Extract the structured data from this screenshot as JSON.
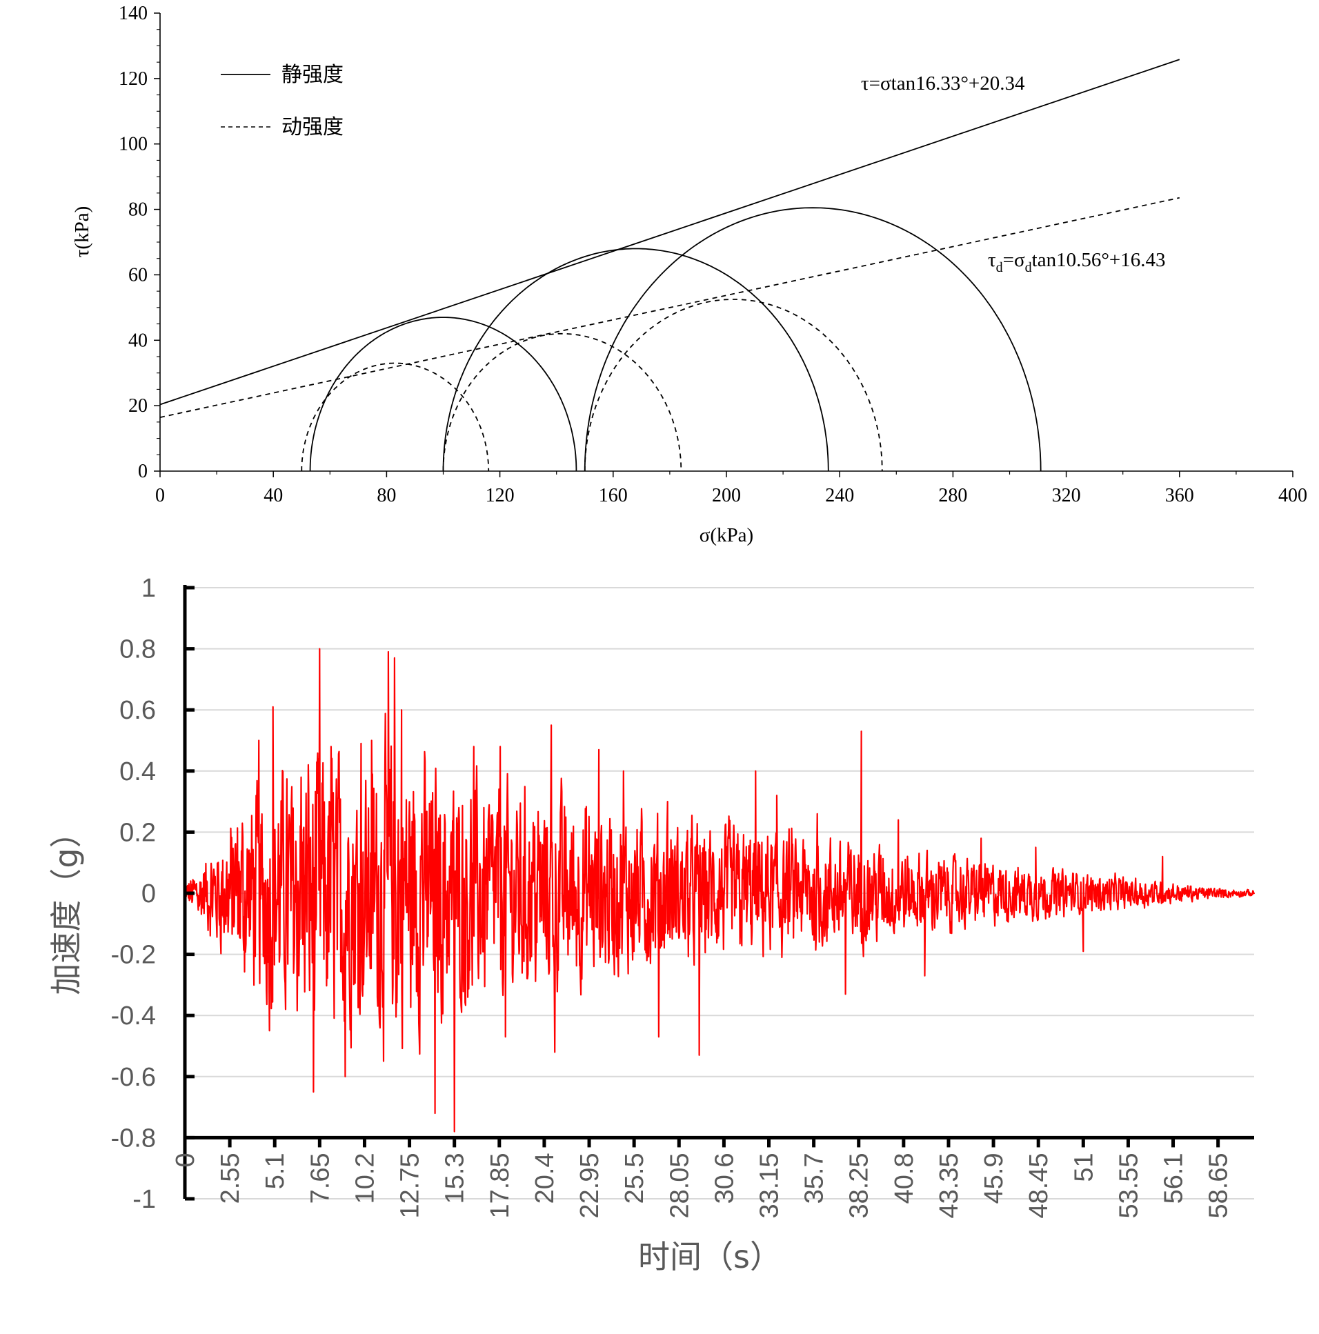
{
  "chart_data": [
    {
      "type": "line",
      "title": "",
      "xlabel": "σ(kPa)",
      "ylabel": "τ(kPa)",
      "xlim": [
        0,
        400
      ],
      "ylim": [
        0,
        140
      ],
      "x_ticks": [
        0,
        40,
        80,
        120,
        160,
        200,
        240,
        280,
        320,
        360,
        400
      ],
      "y_ticks": [
        0,
        20,
        40,
        60,
        80,
        100,
        120,
        140
      ],
      "legend": {
        "placement": "top-left",
        "entries": [
          {
            "label": "静强度",
            "style": "solid"
          },
          {
            "label": "动强度",
            "style": "dashed"
          }
        ]
      },
      "series": [
        {
          "name": "静强度",
          "style": "solid",
          "line": {
            "intercept": 20.34,
            "angle_deg": 16.33,
            "x_range": [
              0,
              360
            ]
          },
          "circles": [
            {
              "sigma3": 53,
              "sigma1": 147
            },
            {
              "sigma3": 100,
              "sigma1": 236
            },
            {
              "sigma3": 150,
              "sigma1": 311
            }
          ]
        },
        {
          "name": "动强度",
          "style": "dashed",
          "line": {
            "intercept": 16.43,
            "angle_deg": 10.56,
            "x_range": [
              0,
              360
            ]
          },
          "circles": [
            {
              "sigma3": 50,
              "sigma1": 116
            },
            {
              "sigma3": 100,
              "sigma1": 184
            },
            {
              "sigma3": 150,
              "sigma1": 255
            }
          ]
        }
      ],
      "annotations": {
        "static_eq": "τ=σtan16.33°+20.34",
        "dyn_eq_prefix": "τ",
        "dyn_eq_sub1": "d",
        "dyn_eq_mid": "=σ",
        "dyn_eq_sub2": "d",
        "dyn_eq_suffix": "tan10.56°+16.43"
      }
    },
    {
      "type": "line",
      "title": "",
      "xlabel": "时间（s）",
      "ylabel": "加速度（g）",
      "xlim": [
        0,
        60.7
      ],
      "ylim": [
        -1,
        1
      ],
      "grid": true,
      "color": "#ff0000",
      "x_tick_labels": [
        "0",
        "2.55",
        "5.1",
        "7.65",
        "10.2",
        "12.75",
        "15.3",
        "17.85",
        "20.4",
        "22.95",
        "25.5",
        "28.05",
        "30.6",
        "33.15",
        "35.7",
        "38.25",
        "40.8",
        "43.35",
        "45.9",
        "48.45",
        "51",
        "53.55",
        "56.1",
        "58.65"
      ],
      "y_ticks": [
        1,
        0.8,
        0.6,
        0.4,
        0.2,
        0,
        -0.2,
        -0.4,
        -0.6,
        -0.8,
        -1
      ],
      "y_tick_labels": [
        "1",
        "0.8",
        "0.6",
        "0.4",
        "0.2",
        "0",
        "-0.2",
        "-0.4",
        "-0.6",
        "-0.8",
        "-1"
      ],
      "x_axis_crosses_at": -0.8,
      "envelope": [
        [
          0,
          0.05
        ],
        [
          1.5,
          0.22
        ],
        [
          3,
          0.42
        ],
        [
          5,
          0.55
        ],
        [
          7.5,
          0.72
        ],
        [
          10,
          0.6
        ],
        [
          12,
          0.78
        ],
        [
          14,
          0.6
        ],
        [
          16,
          0.55
        ],
        [
          18,
          0.5
        ],
        [
          20,
          0.5
        ],
        [
          22,
          0.45
        ],
        [
          24,
          0.42
        ],
        [
          26,
          0.38
        ],
        [
          28,
          0.34
        ],
        [
          30,
          0.33
        ],
        [
          32,
          0.32
        ],
        [
          34,
          0.3
        ],
        [
          36,
          0.28
        ],
        [
          38,
          0.27
        ],
        [
          40,
          0.22
        ],
        [
          42,
          0.19
        ],
        [
          44,
          0.17
        ],
        [
          46,
          0.15
        ],
        [
          48,
          0.13
        ],
        [
          50,
          0.11
        ],
        [
          52,
          0.09
        ],
        [
          54,
          0.075
        ],
        [
          56,
          0.05
        ],
        [
          58,
          0.03
        ],
        [
          60.7,
          0.015
        ]
      ],
      "peaks": [
        [
          7.65,
          0.8
        ],
        [
          11.55,
          0.79
        ],
        [
          11.9,
          0.77
        ],
        [
          13.45,
          0.26
        ],
        [
          15.3,
          -0.78
        ],
        [
          14.2,
          -0.72
        ],
        [
          5.0,
          0.61
        ],
        [
          4.2,
          0.5
        ],
        [
          4.8,
          -0.45
        ],
        [
          6.6,
          0.38
        ],
        [
          7.3,
          -0.65
        ],
        [
          8.3,
          0.48
        ],
        [
          9.1,
          -0.6
        ],
        [
          10.0,
          0.49
        ],
        [
          10.6,
          0.5
        ],
        [
          12.3,
          0.6
        ],
        [
          16.4,
          0.48
        ],
        [
          17.9,
          0.48
        ],
        [
          18.2,
          -0.47
        ],
        [
          20.8,
          0.55
        ],
        [
          21.0,
          -0.52
        ],
        [
          23.5,
          0.47
        ],
        [
          24.9,
          0.4
        ],
        [
          26.9,
          -0.47
        ],
        [
          29.2,
          -0.53
        ],
        [
          27.4,
          0.3
        ],
        [
          32.4,
          0.4
        ],
        [
          33.6,
          0.32
        ],
        [
          35.9,
          0.26
        ],
        [
          37.5,
          -0.33
        ],
        [
          38.4,
          0.53
        ],
        [
          40.5,
          0.24
        ],
        [
          42.0,
          -0.27
        ],
        [
          45.2,
          0.18
        ],
        [
          48.3,
          0.15
        ],
        [
          51.0,
          -0.19
        ],
        [
          55.5,
          0.12
        ]
      ]
    }
  ]
}
